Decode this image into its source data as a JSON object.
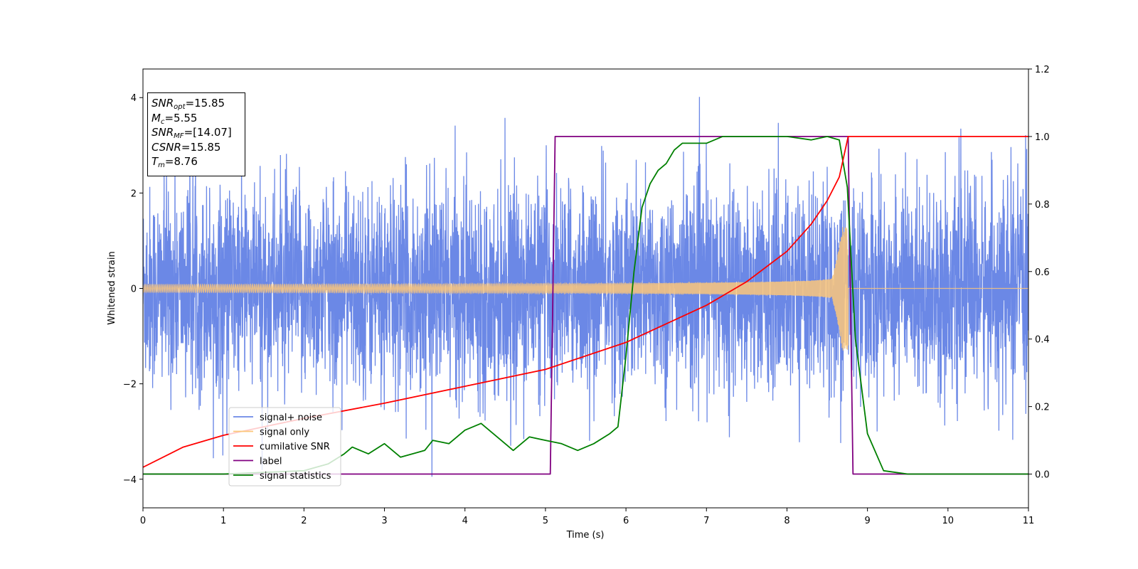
{
  "info_box": [
    {
      "label": "SNR",
      "sub": "opt",
      "value": "=15.85"
    },
    {
      "label": "M",
      "sub": "c",
      "value": "=5.55"
    },
    {
      "label": "SNR",
      "sub": "MF",
      "value": "=[14.07]"
    },
    {
      "label": "CSNR",
      "sub": "",
      "value": "=15.85"
    },
    {
      "label": "T",
      "sub": "m",
      "value": "=8.76"
    }
  ],
  "chart_data": {
    "type": "line",
    "title": "",
    "xlabel": "Time (s)",
    "ylabel": "Whitened strain",
    "y2label": "",
    "xlim": [
      0,
      11
    ],
    "ylim": [
      -4.6,
      4.6
    ],
    "y2lim": [
      -0.1,
      1.2
    ],
    "x_ticks": [
      0,
      1,
      2,
      3,
      4,
      5,
      6,
      7,
      8,
      9,
      10,
      11
    ],
    "y_ticks": [
      -4,
      -2,
      0,
      2,
      4
    ],
    "y_tick_labels": [
      "−4",
      "−2",
      "0",
      "2",
      "4"
    ],
    "y2_ticks": [
      0.0,
      0.2,
      0.4,
      0.6,
      0.8,
      1.0,
      1.2
    ],
    "y2_tick_labels": [
      "0.0",
      "0.2",
      "0.4",
      "0.6",
      "0.8",
      "1.0",
      "1.2"
    ],
    "grid": false,
    "legend_position": "lower-left",
    "series": [
      {
        "name": "signal+ noise",
        "color": "#6b88e6",
        "axis": "left",
        "description_values": {
          "noise_std": 1.0,
          "typical_peak": 3.2,
          "max": 4.18,
          "min": -4.05
        }
      },
      {
        "name": "signal only",
        "color": "#fbc77a",
        "axis": "left",
        "chirp": {
          "start_amplitude": 0.08,
          "merger_time": 8.76,
          "merger_amplitude": 1.1,
          "after_merger": 0.0
        }
      },
      {
        "name": "cumilative SNR",
        "color": "#ff0000",
        "axis": "right",
        "x": [
          0.0,
          0.5,
          1.0,
          2.0,
          3.0,
          4.0,
          5.0,
          6.0,
          7.0,
          7.5,
          8.0,
          8.3,
          8.5,
          8.65,
          8.76,
          11.0
        ],
        "y": [
          0.02,
          0.08,
          0.115,
          0.165,
          0.21,
          0.26,
          0.31,
          0.39,
          0.5,
          0.57,
          0.66,
          0.74,
          0.81,
          0.88,
          1.0,
          1.0
        ]
      },
      {
        "name": "label",
        "color": "#800080",
        "axis": "right",
        "x": [
          0.0,
          5.06,
          5.12,
          8.76,
          8.82,
          11.0
        ],
        "y": [
          0.0,
          0.0,
          1.0,
          1.0,
          0.0,
          0.0
        ]
      },
      {
        "name": "signal statistics",
        "color": "#008000",
        "axis": "right",
        "x": [
          0.0,
          1.0,
          2.0,
          2.3,
          2.5,
          2.6,
          2.8,
          3.0,
          3.2,
          3.5,
          3.6,
          3.8,
          4.0,
          4.2,
          4.3,
          4.4,
          4.6,
          4.8,
          5.0,
          5.2,
          5.4,
          5.6,
          5.8,
          5.9,
          6.0,
          6.1,
          6.2,
          6.3,
          6.4,
          6.5,
          6.6,
          6.7,
          6.8,
          7.0,
          7.2,
          7.5,
          8.0,
          8.3,
          8.5,
          8.65,
          8.75,
          8.85,
          9.0,
          9.2,
          9.5,
          11.0
        ],
        "y": [
          0.0,
          0.0,
          0.01,
          0.03,
          0.06,
          0.08,
          0.06,
          0.09,
          0.05,
          0.07,
          0.1,
          0.09,
          0.13,
          0.15,
          0.13,
          0.11,
          0.07,
          0.11,
          0.1,
          0.09,
          0.07,
          0.09,
          0.12,
          0.14,
          0.35,
          0.6,
          0.79,
          0.86,
          0.9,
          0.92,
          0.96,
          0.98,
          0.98,
          0.98,
          1.0,
          1.0,
          1.0,
          0.99,
          1.0,
          0.99,
          0.85,
          0.4,
          0.12,
          0.01,
          0.0,
          0.0
        ]
      }
    ]
  }
}
